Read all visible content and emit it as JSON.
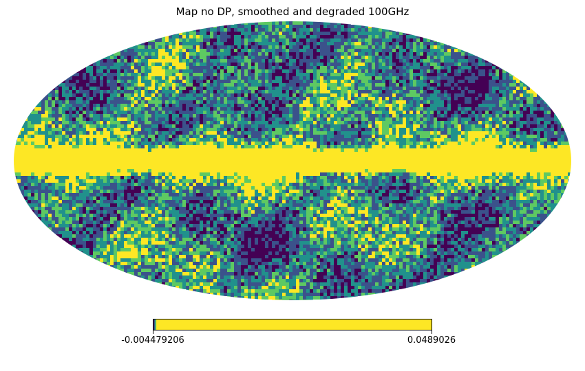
{
  "title": "Map no DP, smoothed and degraded 100GHz",
  "projection": "mollweide",
  "colormap": "viridis",
  "colorbar": {
    "min_label": "-0.004479206",
    "max_label": "0.0489026"
  },
  "colors": {
    "low": "#440154",
    "mid": "#21918c",
    "high": "#fde725"
  }
}
